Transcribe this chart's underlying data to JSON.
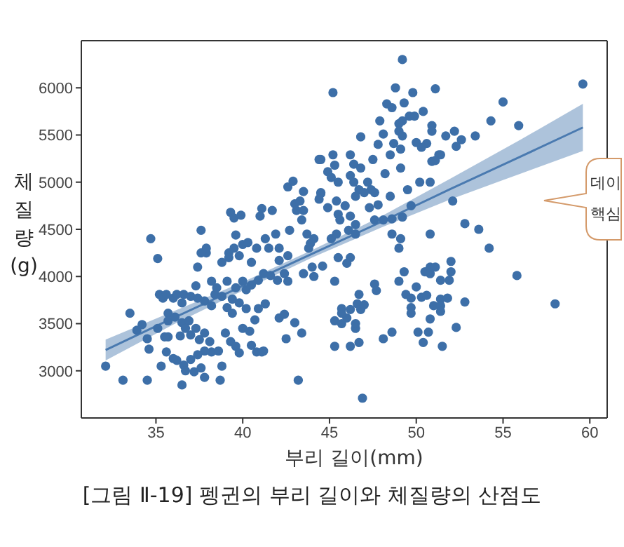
{
  "chart_data": {
    "type": "scatter",
    "xlabel": "부리 길이(mm)",
    "ylabel": "체질량(g)",
    "xlim": [
      30.7,
      61
    ],
    "ylim": [
      2500,
      6500
    ],
    "xticks": [
      35,
      40,
      45,
      50,
      55,
      60
    ],
    "yticks": [
      3000,
      3500,
      4000,
      4500,
      5000,
      5500,
      6000
    ],
    "annotations": [
      "[그림 Ⅱ-19] 펭귄의 부리 길이와 체질량의 산점도",
      "데이",
      "핵심"
    ],
    "series": [
      {
        "color": "#3d6fa8",
        "marker": "circle",
        "x": [
          34.7,
          35.1,
          37.6,
          37.9,
          39.3,
          39.5,
          39.9,
          39.6,
          39.2,
          40.0,
          40.3,
          41.0,
          41.1,
          41.7,
          41.9,
          41.3,
          40.8,
          41.5,
          42.1,
          42.6,
          42.9,
          42.7,
          43.0,
          43.3,
          43.5,
          43.5,
          43.4,
          43.1,
          43.7,
          43.8,
          44.4,
          44.5,
          49.2,
          45.2,
          48.8,
          49.8,
          51.1,
          59.6,
          55.0,
          54.3,
          55.9,
          53.4,
          52.6,
          52.2,
          52.3,
          51.7,
          50.9,
          50.9,
          50.4,
          49.9,
          49.6,
          49.2,
          49.0,
          49.3,
          48.3,
          48.6,
          47.9,
          48.1,
          49.0,
          49.2,
          46.8,
          47.8,
          48.7,
          49.1,
          50.0,
          50.6,
          50.3,
          51.3,
          50.9,
          51.4,
          51.1,
          48.5,
          49.1,
          48.2,
          47.5,
          46.2,
          45.2,
          44.5,
          45.3,
          46.4,
          46.8,
          44.9,
          45.1,
          45.5,
          46.2,
          46.4,
          47.2,
          47.4,
          46.7,
          44.5,
          44.4,
          45.4,
          45.9,
          46.5,
          47.0,
          47.6,
          48.5,
          49.5,
          50.2,
          50.8,
          47.8,
          47.3,
          44.9,
          45.5,
          46.2,
          45.6,
          46.5,
          47.6,
          48.1,
          48.6,
          49.2,
          49.7,
          52.1,
          52.8,
          53.6,
          54.2,
          50.8,
          48.6,
          49.1,
          49.0,
          45.1,
          45.4,
          46.1,
          46.5,
          44.1,
          43.9,
          55.8,
          58.0,
          49.3,
          49.0,
          50.0,
          50.5,
          50.8,
          51.1,
          50.8,
          52.0,
          52.0,
          51.4,
          51.9,
          49.4,
          49.7,
          50.3,
          50.6,
          49.7,
          49.7,
          51.0,
          51.4,
          51.8,
          51.4,
          51.4,
          52.8,
          50.8,
          52.3,
          50.1,
          50.7,
          50.4,
          51.5,
          48.6,
          48.1,
          46.9,
          44.6,
          44.1,
          45.3,
          45.3,
          45.7,
          45.3,
          46.2,
          46.7,
          46.5,
          46.5,
          46.0,
          45.7,
          45.7,
          46.2,
          46.6,
          46.8,
          47.0,
          46.7,
          47.6,
          47.7,
          45.5,
          46.2,
          46.0,
          32.1,
          33.1,
          33.5,
          34.2,
          33.9,
          34.5,
          34.6,
          34.5,
          35.3,
          35.1,
          35.2,
          35.4,
          35.6,
          36.0,
          36.2,
          36.5,
          36.6,
          37.0,
          37.4,
          37.8,
          38.2,
          38.4,
          38.8,
          39.1,
          39.4,
          37.3,
          38.2,
          38.5,
          39.1,
          39.6,
          40.0,
          40.2,
          40.5,
          40.9,
          41.2,
          41.6,
          42.0,
          42.4,
          42.6,
          43.5,
          44.0,
          39.2,
          39.5,
          37.9,
          35.7,
          35.7,
          36.1,
          36.5,
          36.9,
          36.7,
          37.0,
          37.3,
          37.5,
          37.8,
          38.1,
          38.2,
          37.8,
          37.4,
          37.0,
          36.6,
          36.2,
          36.0,
          35.6,
          35.7,
          35.5,
          36.4,
          36.7,
          36.5,
          37.2,
          37.6,
          37.8,
          38.7,
          38.8,
          38.6,
          39.0,
          39.3,
          39.6,
          39.8,
          40.0,
          40.4,
          40.5,
          40.8,
          41.1,
          41.2,
          40.7,
          40.2,
          40.9,
          41.3,
          39.4,
          39.8,
          42.1,
          42.4,
          43.0,
          42.5,
          43.4,
          43.2,
          37.4,
          37.6,
          38.8,
          39.8,
          40.5,
          42.1,
          42.6
        ],
        "values": [
          4400,
          4190,
          4490,
          4250,
          4680,
          4620,
          4650,
          4440,
          4250,
          4340,
          4360,
          4640,
          4720,
          4700,
          4450,
          4400,
          4300,
          4300,
          4300,
          4950,
          5010,
          4490,
          4770,
          4800,
          4900,
          4700,
          4600,
          4700,
          4450,
          4300,
          5240,
          4880,
          6300,
          5950,
          6000,
          5950,
          5990,
          6040,
          5850,
          5650,
          5600,
          5490,
          5450,
          5540,
          5380,
          5490,
          5600,
          5540,
          5750,
          5700,
          5700,
          5650,
          5620,
          5840,
          5830,
          5790,
          5650,
          5510,
          5540,
          5490,
          5480,
          5400,
          5410,
          5350,
          5420,
          5410,
          5370,
          5290,
          5220,
          5290,
          5230,
          5290,
          5150,
          5090,
          5240,
          5290,
          5290,
          5240,
          5180,
          5190,
          5150,
          5110,
          5050,
          5000,
          5070,
          5000,
          5000,
          4920,
          4920,
          4890,
          4820,
          4800,
          4750,
          4850,
          4890,
          4890,
          4850,
          4920,
          5000,
          5000,
          4760,
          4730,
          4730,
          4660,
          4640,
          4600,
          4550,
          4600,
          4600,
          4610,
          4630,
          4750,
          4800,
          4560,
          4500,
          4300,
          4450,
          4450,
          4400,
          4300,
          4400,
          4450,
          4490,
          4450,
          4400,
          4350,
          4010,
          3710,
          4050,
          3950,
          3890,
          4050,
          4100,
          4100,
          4030,
          4160,
          4050,
          3960,
          3960,
          3810,
          3770,
          3780,
          3800,
          3670,
          3610,
          3690,
          3760,
          3770,
          3690,
          3630,
          3730,
          3550,
          3460,
          3410,
          3410,
          3300,
          3260,
          3410,
          3340,
          2710,
          4110,
          4000,
          3950,
          3530,
          3500,
          3260,
          3260,
          3300,
          3450,
          3500,
          3560,
          3610,
          3660,
          3650,
          3710,
          3650,
          3700,
          3810,
          3920,
          3850,
          4200,
          4200,
          4140,
          3050,
          2900,
          3610,
          3490,
          3430,
          3340,
          3230,
          2900,
          3050,
          3450,
          3810,
          3770,
          3810,
          3770,
          3810,
          3720,
          3810,
          3790,
          3770,
          3740,
          3690,
          3810,
          3790,
          3670,
          3610,
          3900,
          3950,
          3880,
          3950,
          3880,
          3950,
          3860,
          3910,
          3960,
          4030,
          4010,
          3960,
          4030,
          3950,
          4030,
          4100,
          4200,
          4300,
          4300,
          3610,
          3530,
          3570,
          3510,
          3530,
          3450,
          3380,
          3450,
          3330,
          3400,
          3310,
          3200,
          3210,
          3170,
          3120,
          3060,
          3110,
          3130,
          3200,
          3360,
          3360,
          3370,
          3000,
          2850,
          2990,
          3030,
          2930,
          2900,
          3050,
          3210,
          3400,
          3310,
          3260,
          3190,
          3450,
          3420,
          3270,
          3200,
          3200,
          3210,
          3540,
          3660,
          3660,
          3710,
          3760,
          3720,
          3560,
          3600,
          3510,
          3340,
          3400,
          2900,
          4100,
          4250,
          4150,
          4220,
          4150,
          4170,
          4220
        ]
      },
      {
        "type": "line",
        "color": "#4a7ab0",
        "x": [
          32.1,
          36,
          40,
          44,
          48,
          52,
          56,
          59.6
        ],
        "values": [
          3220,
          3560,
          3900,
          4240,
          4580,
          4930,
          5270,
          5580
        ],
        "lower": [
          3110,
          3490,
          3850,
          4200,
          4520,
          4820,
          5090,
          5330
        ],
        "upper": [
          3330,
          3630,
          3940,
          4280,
          4640,
          5040,
          5450,
          5830
        ]
      }
    ]
  }
}
